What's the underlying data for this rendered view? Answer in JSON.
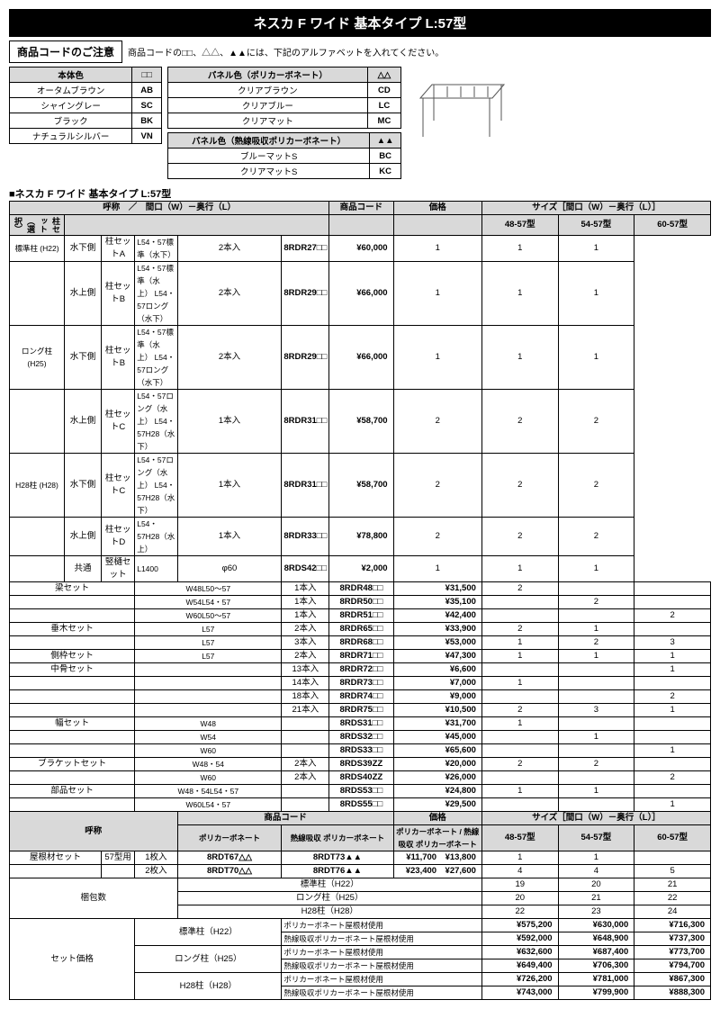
{
  "title": "ネスカ F ワイド 基本タイプ L:57型",
  "notice_label": "商品コードのご注意",
  "notice_text": "商品コードの□□、△△、▲▲には、下記のアルファベットを入れてください。",
  "body_color": {
    "header": "本体色",
    "sym": "□□",
    "rows": [
      {
        "name": "オータムブラウン",
        "code": "AB"
      },
      {
        "name": "シャイングレー",
        "code": "SC"
      },
      {
        "name": "ブラック",
        "code": "BK"
      },
      {
        "name": "ナチュラルシルバー",
        "code": "VN"
      }
    ]
  },
  "panel_pc": {
    "header": "パネル色（ポリカーボネート）",
    "sym": "△△",
    "rows": [
      {
        "name": "クリアブラウン",
        "code": "CD"
      },
      {
        "name": "クリアブルー",
        "code": "LC"
      },
      {
        "name": "クリアマット",
        "code": "MC"
      }
    ]
  },
  "panel_hpc": {
    "header": "パネル色（熱線吸収ポリカーボネート）",
    "sym": "▲▲",
    "rows": [
      {
        "name": "ブルーマットS",
        "code": "BC"
      },
      {
        "name": "クリアマットS",
        "code": "KC"
      }
    ]
  },
  "section_title": "■ネスカ F ワイド 基本タイプ L:57型",
  "main_headers": {
    "name": "呼称　／　間口（W）－奥行（L）",
    "code": "商品コード",
    "price": "価格",
    "size": "サイズ［間口（W）－奥行（L）］",
    "s1": "48-57型",
    "s2": "54-57型",
    "s3": "60-57型",
    "pillar_select": "柱セット（選択）"
  },
  "pillar": [
    {
      "grp": "標準柱 (H22)",
      "side": "水下側",
      "set": "柱セットA",
      "spec": "L54・57標準（水下）",
      "qty": "2本入",
      "code": "8RDR27□□",
      "price": "¥60,000",
      "n": [
        "1",
        "1",
        "1"
      ]
    },
    {
      "grp": "",
      "side": "水上側",
      "set": "柱セットB",
      "spec": "L54・57標準（水上） L54・57ロング（水下）",
      "qty": "2本入",
      "code": "8RDR29□□",
      "price": "¥66,000",
      "n": [
        "1",
        "1",
        "1"
      ]
    },
    {
      "grp": "ロング柱 (H25)",
      "side": "水下側",
      "set": "柱セットB",
      "spec": "L54・57標準（水上） L54・57ロング（水下）",
      "qty": "2本入",
      "code": "8RDR29□□",
      "price": "¥66,000",
      "n": [
        "1",
        "1",
        "1"
      ]
    },
    {
      "grp": "",
      "side": "水上側",
      "set": "柱セットC",
      "spec": "L54・57ロング（水上） L54・57H28（水下）",
      "qty": "1本入",
      "code": "8RDR31□□",
      "price": "¥58,700",
      "n": [
        "2",
        "2",
        "2"
      ]
    },
    {
      "grp": "H28柱 (H28)",
      "side": "水下側",
      "set": "柱セットC",
      "spec": "L54・57ロング（水上） L54・57H28（水下）",
      "qty": "1本入",
      "code": "8RDR31□□",
      "price": "¥58,700",
      "n": [
        "2",
        "2",
        "2"
      ]
    },
    {
      "grp": "",
      "side": "水上側",
      "set": "柱セットD",
      "spec": "L54・57H28（水上）",
      "qty": "1本入",
      "code": "8RDR33□□",
      "price": "¥78,800",
      "n": [
        "2",
        "2",
        "2"
      ]
    },
    {
      "grp": "",
      "side": "共通",
      "set": "竪樋セット",
      "spec": "L1400",
      "qty": "φ60",
      "code": "8RDS42□□",
      "price": "¥2,000",
      "n": [
        "1",
        "1",
        "1"
      ]
    }
  ],
  "beam": [
    {
      "name": "梁セット",
      "spec": "W48L50～57",
      "qty": "1本入",
      "code": "8RDR48□□",
      "price": "¥31,500",
      "n": [
        "2",
        "",
        ""
      ]
    },
    {
      "name": "",
      "spec": "W54L54・57",
      "qty": "1本入",
      "code": "8RDR50□□",
      "price": "¥35,100",
      "n": [
        "",
        "2",
        ""
      ]
    },
    {
      "name": "",
      "spec": "W60L50～57",
      "qty": "1本入",
      "code": "8RDR51□□",
      "price": "¥42,400",
      "n": [
        "",
        "",
        "2"
      ]
    },
    {
      "name": "垂木セット",
      "spec": "L57",
      "qty": "2本入",
      "code": "8RDR65□□",
      "price": "¥33,900",
      "n": [
        "2",
        "1",
        ""
      ]
    },
    {
      "name": "",
      "spec": "L57",
      "qty": "3本入",
      "code": "8RDR68□□",
      "price": "¥53,000",
      "n": [
        "1",
        "2",
        "3"
      ]
    },
    {
      "name": "側枠セット",
      "spec": "L57",
      "qty": "2本入",
      "code": "8RDR71□□",
      "price": "¥47,300",
      "n": [
        "1",
        "1",
        "1"
      ]
    },
    {
      "name": "中骨セット",
      "spec": "",
      "qty": "13本入",
      "code": "8RDR72□□",
      "price": "¥6,600",
      "n": [
        "",
        "",
        "1"
      ]
    },
    {
      "name": "",
      "spec": "",
      "qty": "14本入",
      "code": "8RDR73□□",
      "price": "¥7,000",
      "n": [
        "1",
        "",
        ""
      ]
    },
    {
      "name": "",
      "spec": "",
      "qty": "18本入",
      "code": "8RDR74□□",
      "price": "¥9,000",
      "n": [
        "",
        "",
        "2"
      ]
    },
    {
      "name": "",
      "spec": "",
      "qty": "21本入",
      "code": "8RDR75□□",
      "price": "¥10,500",
      "n": [
        "2",
        "3",
        "1"
      ]
    },
    {
      "name": "幅セット",
      "spec": "W48",
      "qty": "",
      "code": "8RDS31□□",
      "price": "¥31,700",
      "n": [
        "1",
        "",
        ""
      ]
    },
    {
      "name": "",
      "spec": "W54",
      "qty": "",
      "code": "8RDS32□□",
      "price": "¥45,000",
      "n": [
        "",
        "1",
        ""
      ]
    },
    {
      "name": "",
      "spec": "W60",
      "qty": "",
      "code": "8RDS33□□",
      "price": "¥65,600",
      "n": [
        "",
        "",
        "1"
      ]
    },
    {
      "name": "ブラケットセット",
      "spec": "W48・54",
      "qty": "2本入",
      "code": "8RDS39ZZ",
      "price": "¥20,000",
      "n": [
        "2",
        "2",
        ""
      ]
    },
    {
      "name": "",
      "spec": "W60",
      "qty": "2本入",
      "code": "8RDS40ZZ",
      "price": "¥26,000",
      "n": [
        "",
        "",
        "2"
      ]
    },
    {
      "name": "部品セット",
      "spec": "W48・54L54・57",
      "qty": "",
      "code": "8RDS53□□",
      "price": "¥24,800",
      "n": [
        "1",
        "1",
        ""
      ]
    },
    {
      "name": "",
      "spec": "W60L54・57",
      "qty": "",
      "code": "8RDS55□□",
      "price": "¥29,500",
      "n": [
        "",
        "",
        "1"
      ]
    }
  ],
  "roof_headers": {
    "name": "呼称",
    "code": "商品コード",
    "price": "価格",
    "size": "サイズ［間口（W）－奥行（L）］",
    "pc": "ポリカーボネート",
    "hpc": "熱線吸収 ポリカーボネート",
    "s1": "48-57型",
    "s2": "54-57型",
    "s3": "60-57型"
  },
  "roof": [
    {
      "name": "屋根材セット",
      "type": "57型用",
      "qty": "1枚入",
      "c1": "8RDT67△△",
      "c2": "8RDT73▲▲",
      "p1": "¥11,700",
      "p2": "¥13,800",
      "n": [
        "1",
        "1",
        ""
      ]
    },
    {
      "name": "",
      "type": "",
      "qty": "2枚入",
      "c1": "8RDT70△△",
      "c2": "8RDT76▲▲",
      "p1": "¥23,400",
      "p2": "¥27,600",
      "n": [
        "4",
        "4",
        "5"
      ]
    }
  ],
  "pkg": {
    "label": "梱包数",
    "rows": [
      {
        "name": "標準柱（H22）",
        "n": [
          "19",
          "20",
          "21"
        ]
      },
      {
        "name": "ロング柱（H25）",
        "n": [
          "20",
          "21",
          "22"
        ]
      },
      {
        "name": "H28柱（H28）",
        "n": [
          "22",
          "23",
          "24"
        ]
      }
    ]
  },
  "setprice": {
    "label": "セット価格",
    "rows": [
      {
        "grp": "標準柱（H22）",
        "mat": "ポリカーボネート屋根材使用",
        "p": [
          "¥575,200",
          "¥630,000",
          "¥716,300"
        ]
      },
      {
        "grp": "",
        "mat": "熱線吸収ポリカーボネート屋根材使用",
        "p": [
          "¥592,000",
          "¥648,900",
          "¥737,300"
        ]
      },
      {
        "grp": "ロング柱（H25）",
        "mat": "ポリカーボネート屋根材使用",
        "p": [
          "¥632,600",
          "¥687,400",
          "¥773,700"
        ]
      },
      {
        "grp": "",
        "mat": "熱線吸収ポリカーボネート屋根材使用",
        "p": [
          "¥649,400",
          "¥706,300",
          "¥794,700"
        ]
      },
      {
        "grp": "H28柱（H28）",
        "mat": "ポリカーボネート屋根材使用",
        "p": [
          "¥726,200",
          "¥781,000",
          "¥867,300"
        ]
      },
      {
        "grp": "",
        "mat": "熱線吸収ポリカーボネート屋根材使用",
        "p": [
          "¥743,000",
          "¥799,900",
          "¥888,300"
        ]
      }
    ]
  }
}
